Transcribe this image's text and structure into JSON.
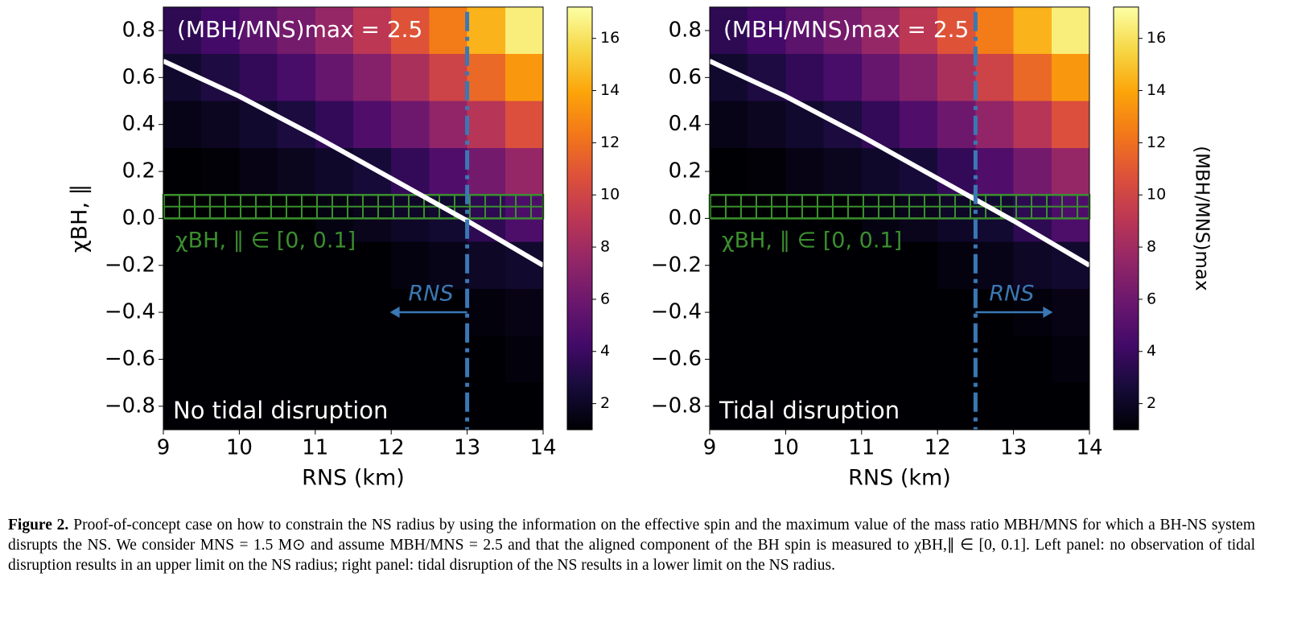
{
  "chart_data": [
    {
      "type": "heatmap",
      "colormap": "inferno",
      "xlabel": "RNS (km)",
      "ylabel": "χBH, ∥",
      "annotation": "(MBH/MNS)max = 2.5",
      "band_label": "χBH, ∥ ∈ [0, 0.1]",
      "vline_label": "RNS",
      "region_label": "No tidal disruption",
      "xlim": [
        9,
        14
      ],
      "xticks": [
        9,
        10,
        11,
        12,
        13,
        14
      ],
      "ylim": [
        -0.9,
        0.9
      ],
      "yticks": [
        {
          "value": -0.8,
          "label": "−0.8"
        },
        {
          "value": -0.6,
          "label": "−0.6"
        },
        {
          "value": -0.4,
          "label": "−0.4"
        },
        {
          "value": -0.2,
          "label": "−0.2"
        },
        {
          "value": 0,
          "label": "0.0"
        },
        0.2,
        0.4,
        0.6,
        0.8
      ],
      "x": [
        9.25,
        9.75,
        10.25,
        10.75,
        11.25,
        11.75,
        12.25,
        12.75,
        13.25,
        13.75
      ],
      "y": [
        0.8,
        0.6,
        0.4,
        0.2,
        0,
        -0.2,
        -0.4,
        -0.6,
        -0.8
      ],
      "z": [
        [
          3.5,
          4.3,
          5.3,
          6.3,
          7.6,
          9.1,
          10.8,
          12.5,
          14.4,
          16.5
        ],
        [
          2.3,
          2.9,
          3.7,
          4.5,
          5.7,
          6.9,
          8.4,
          9.9,
          11.7,
          13.5
        ],
        [
          1.6,
          1.9,
          2.3,
          2.8,
          3.7,
          4.8,
          6.0,
          7.4,
          8.9,
          10.6
        ],
        [
          1,
          1.1,
          1.5,
          1.8,
          2.2,
          2.6,
          3.7,
          4.8,
          6.2,
          7.6
        ],
        [
          1,
          1,
          1,
          1,
          1.4,
          1.7,
          2.1,
          2.4,
          3.5,
          4.7
        ],
        [
          1,
          1,
          1,
          1,
          1,
          1,
          1.3,
          1.6,
          2.0,
          2.3
        ],
        [
          1,
          1,
          1,
          1,
          1,
          1,
          1,
          1,
          1.2,
          1.5
        ],
        [
          1,
          1,
          1,
          1,
          1,
          1,
          1,
          1,
          1,
          1.2
        ],
        [
          1,
          1,
          1,
          1,
          1,
          1,
          1,
          1,
          1,
          1
        ]
      ],
      "contour": {
        "x": [
          9,
          10,
          11,
          12,
          13,
          14
        ],
        "y": [
          0.67,
          0.52,
          0.35,
          0.17,
          -0.01,
          -0.2
        ],
        "color": "#ffffff"
      },
      "band": [
        0,
        0.1
      ],
      "band_color": "#3b8f2e",
      "vline": 13,
      "vline_color": "#3a78b5",
      "arrow_direction": "left",
      "colorbar": {
        "lim": [
          1,
          17.2
        ],
        "ticks": [
          2,
          4,
          6,
          8,
          10,
          12,
          14,
          16
        ]
      }
    },
    {
      "type": "heatmap",
      "colormap": "inferno",
      "xlabel": "RNS (km)",
      "annotation": "(MBH/MNS)max = 2.5",
      "band_label": "χBH, ∥ ∈ [0, 0.1]",
      "vline_label": "RNS",
      "region_label": "Tidal disruption",
      "xlim": [
        9,
        14
      ],
      "xticks": [
        9,
        10,
        11,
        12,
        13,
        14
      ],
      "ylim": [
        -0.9,
        0.9
      ],
      "yticks": [
        {
          "value": -0.8,
          "label": "−0.8"
        },
        {
          "value": -0.6,
          "label": "−0.6"
        },
        {
          "value": -0.4,
          "label": "−0.4"
        },
        {
          "value": -0.2,
          "label": "−0.2"
        },
        {
          "value": 0,
          "label": "0.0"
        },
        0.2,
        0.4,
        0.6,
        0.8
      ],
      "x": [
        9.25,
        9.75,
        10.25,
        10.75,
        11.25,
        11.75,
        12.25,
        12.75,
        13.25,
        13.75
      ],
      "y": [
        0.8,
        0.6,
        0.4,
        0.2,
        0,
        -0.2,
        -0.4,
        -0.6,
        -0.8
      ],
      "z": [
        [
          3.5,
          4.3,
          5.3,
          6.3,
          7.6,
          9.1,
          10.8,
          12.5,
          14.4,
          16.5
        ],
        [
          2.3,
          2.9,
          3.7,
          4.5,
          5.7,
          6.9,
          8.4,
          9.9,
          11.7,
          13.5
        ],
        [
          1.6,
          1.9,
          2.3,
          2.8,
          3.7,
          4.8,
          6.0,
          7.4,
          8.9,
          10.6
        ],
        [
          1,
          1.1,
          1.5,
          1.8,
          2.2,
          2.6,
          3.7,
          4.8,
          6.2,
          7.6
        ],
        [
          1,
          1,
          1,
          1,
          1.4,
          1.7,
          2.1,
          2.4,
          3.5,
          4.7
        ],
        [
          1,
          1,
          1,
          1,
          1,
          1,
          1.3,
          1.6,
          2.0,
          2.3
        ],
        [
          1,
          1,
          1,
          1,
          1,
          1,
          1,
          1,
          1.2,
          1.5
        ],
        [
          1,
          1,
          1,
          1,
          1,
          1,
          1,
          1,
          1,
          1.2
        ],
        [
          1,
          1,
          1,
          1,
          1,
          1,
          1,
          1,
          1,
          1
        ]
      ],
      "contour": {
        "x": [
          9,
          10,
          11,
          12,
          13,
          14
        ],
        "y": [
          0.67,
          0.52,
          0.35,
          0.17,
          -0.01,
          -0.2
        ],
        "color": "#ffffff"
      },
      "band": [
        0,
        0.1
      ],
      "band_color": "#3b8f2e",
      "vline": 12.5,
      "vline_color": "#3a78b5",
      "arrow_direction": "right",
      "colorbar": {
        "lim": [
          1,
          17.2
        ],
        "ticks": [
          2,
          4,
          6,
          8,
          10,
          12,
          14,
          16
        ],
        "label": "(MBH/MNS)max"
      }
    }
  ],
  "caption": {
    "label": "Figure 2.",
    "text": "Proof-of-concept case on how to constrain the NS radius by using the information on the effective spin and the maximum value of the mass ratio MBH/MNS for which a BH-NS system disrupts the NS. We consider MNS = 1.5 M⊙ and assume MBH/MNS = 2.5 and that the aligned component of the BH spin is measured to χBH,∥ ∈ [0, 0.1]. Left panel: no observation of tidal disruption results in an upper limit on the NS radius; right panel: tidal disruption of the NS results in a lower limit on the NS radius."
  }
}
